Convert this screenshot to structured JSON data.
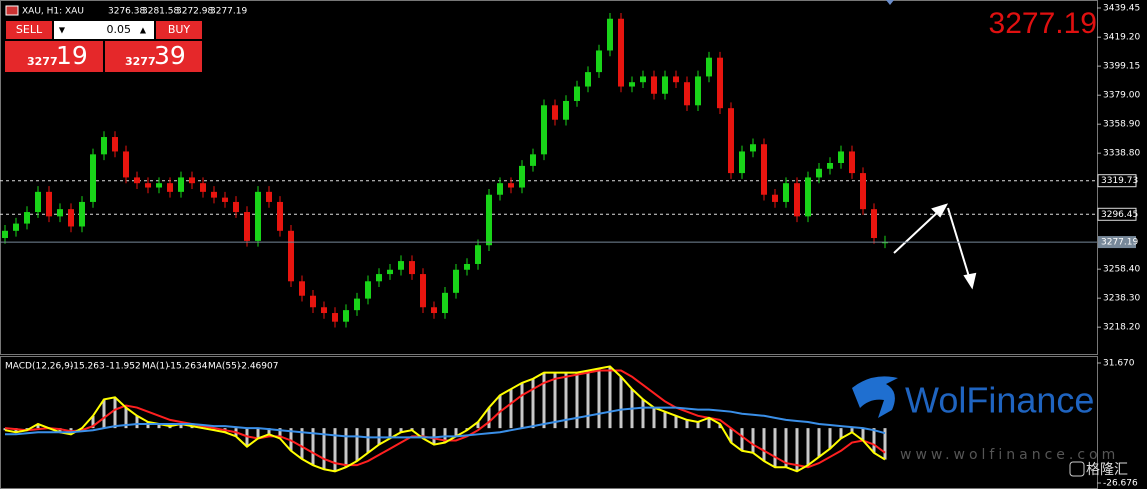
{
  "chart_data": [
    {
      "type": "candlestick",
      "symbol": "XAU, H1: XAU",
      "up_color": "#19d419",
      "down_color": "#e8150f",
      "bid_color": "#778899",
      "ylim": [
        3199.6,
        3443.6
      ],
      "yticks": [
        3439.45,
        {
          "value": 3419.2,
          "label": "3419.20"
        },
        3399.15,
        {
          "value": 3379,
          "label": "3379.00"
        },
        {
          "value": 3358.9,
          "label": "3358.90"
        },
        {
          "value": 3338.8,
          "label": "3338.80"
        },
        {
          "value": 3258.4,
          "label": "3258.40"
        },
        {
          "value": 3238.3,
          "label": "3238.30"
        },
        {
          "value": 3218.2,
          "label": "3218.20"
        }
      ],
      "levels": [
        3319.73,
        3296.45
      ],
      "open": [
        3280,
        3285,
        3290,
        3298,
        3312,
        3295,
        3300,
        3288,
        3305,
        3338,
        3350,
        3340,
        3322,
        3318,
        3315,
        3318,
        3312,
        3322,
        3318,
        3312,
        3308,
        3305,
        3298,
        3278,
        3312,
        3305,
        3285,
        3250,
        3240,
        3232,
        3228,
        3222,
        3230,
        3238,
        3250,
        3255,
        3258,
        3264,
        3255,
        3232,
        3228,
        3242,
        3258,
        3262,
        3275,
        3310,
        3318,
        3315,
        3330,
        3338,
        3372,
        3362,
        3375,
        3385,
        3395,
        3410,
        3432,
        3385,
        3388,
        3392,
        3380,
        3392,
        3388,
        3372,
        3392,
        3405,
        3370,
        3325,
        3340,
        3345,
        3310,
        3305,
        3318,
        3295,
        3322,
        3328,
        3332,
        3340,
        3325,
        3300,
        3276.38
      ],
      "high": [
        3289,
        3294,
        3302,
        3316,
        3316,
        3304,
        3304,
        3309,
        3342,
        3354,
        3354,
        3344,
        3326,
        3322,
        3322,
        3322,
        3326,
        3326,
        3322,
        3316,
        3312,
        3309,
        3302,
        3316,
        3316,
        3309,
        3289,
        3254,
        3244,
        3236,
        3232,
        3234,
        3242,
        3254,
        3259,
        3262,
        3268,
        3268,
        3259,
        3236,
        3246,
        3262,
        3266,
        3279,
        3314,
        3322,
        3322,
        3334,
        3342,
        3376,
        3376,
        3379,
        3389,
        3399,
        3414,
        3436,
        3436,
        3392,
        3396,
        3396,
        3396,
        3396,
        3392,
        3396,
        3409,
        3409,
        3374,
        3344,
        3349,
        3349,
        3314,
        3322,
        3322,
        3326,
        3332,
        3336,
        3344,
        3344,
        3329,
        3304,
        3281.58
      ],
      "low": [
        3276,
        3281,
        3286,
        3294,
        3291,
        3291,
        3284,
        3284,
        3301,
        3334,
        3336,
        3318,
        3314,
        3311,
        3311,
        3308,
        3308,
        3314,
        3308,
        3304,
        3301,
        3294,
        3274,
        3274,
        3301,
        3281,
        3246,
        3236,
        3228,
        3224,
        3218,
        3218,
        3226,
        3234,
        3246,
        3251,
        3254,
        3251,
        3228,
        3224,
        3224,
        3238,
        3254,
        3258,
        3271,
        3306,
        3311,
        3311,
        3326,
        3334,
        3358,
        3358,
        3371,
        3381,
        3391,
        3406,
        3381,
        3381,
        3384,
        3376,
        3376,
        3384,
        3368,
        3368,
        3388,
        3366,
        3321,
        3321,
        3336,
        3306,
        3301,
        3301,
        3291,
        3291,
        3318,
        3324,
        3328,
        3321,
        3296,
        3276,
        3272.98
      ],
      "close": [
        3285,
        3290,
        3298,
        3312,
        3295,
        3300,
        3288,
        3305,
        3338,
        3350,
        3340,
        3322,
        3318,
        3315,
        3318,
        3312,
        3322,
        3318,
        3312,
        3308,
        3305,
        3298,
        3278,
        3312,
        3305,
        3285,
        3250,
        3240,
        3232,
        3228,
        3222,
        3230,
        3238,
        3250,
        3255,
        3258,
        3264,
        3255,
        3232,
        3228,
        3242,
        3258,
        3262,
        3275,
        3310,
        3318,
        3315,
        3330,
        3338,
        3372,
        3362,
        3375,
        3385,
        3395,
        3410,
        3432,
        3385,
        3388,
        3392,
        3380,
        3392,
        3388,
        3372,
        3392,
        3405,
        3370,
        3325,
        3340,
        3345,
        3310,
        3305,
        3318,
        3295,
        3322,
        3328,
        3332,
        3340,
        3325,
        3300,
        3280,
        3277.19
      ]
    },
    {
      "type": "macd",
      "name": "MACD(12,26,9)",
      "ylim": [
        -29.59,
        34.59
      ],
      "yticks": [
        {
          "value": 31.67,
          "label": "31.670"
        },
        -26.676
      ],
      "histogram": {
        "color": "#c8c8c8",
        "values": [
          -1,
          -2,
          -1,
          2,
          0,
          -2,
          -3,
          0,
          6,
          14,
          15,
          10,
          6,
          3,
          2,
          1,
          2,
          1,
          0,
          -1,
          -2,
          -4,
          -9,
          -5,
          -3,
          -5,
          -11,
          -15,
          -18,
          -20,
          -21,
          -19,
          -16,
          -12,
          -8,
          -5,
          -2,
          -1,
          -5,
          -8,
          -7,
          -4,
          -1,
          3,
          10,
          16,
          19,
          22,
          24,
          27,
          27,
          27,
          27,
          28,
          29,
          30,
          25,
          19,
          14,
          10,
          8,
          6,
          4,
          3,
          5,
          2,
          -7,
          -11,
          -12,
          -16,
          -19,
          -19,
          -21,
          -18,
          -14,
          -10,
          -5,
          -2,
          -6,
          -12,
          -15.263
        ]
      },
      "series": [
        {
          "color": "#ff2020",
          "values": [
            0,
            -0.5,
            -1,
            -0.5,
            0,
            -0.5,
            -1.5,
            -1,
            1,
            5,
            9,
            11,
            10,
            8,
            6,
            4,
            3,
            2,
            1,
            0,
            -1,
            -2,
            -4,
            -5,
            -4,
            -4,
            -6,
            -9,
            -12,
            -15,
            -17,
            -18,
            -18,
            -16,
            -13,
            -10,
            -7,
            -4,
            -4,
            -5,
            -6,
            -6,
            -4,
            -1,
            3,
            8,
            12,
            16,
            19,
            22,
            24,
            25,
            26,
            27,
            28,
            28,
            28,
            25,
            21,
            17,
            13,
            10,
            8,
            6,
            5,
            4,
            0,
            -4,
            -8,
            -11,
            -14,
            -17,
            -18,
            -19,
            -17,
            -14,
            -11,
            -7,
            -6,
            -8,
            -11.952
          ]
        },
        {
          "name": "MA(1)",
          "color": "#ffff00",
          "values": [
            -1,
            -2,
            -1,
            2,
            0,
            -2,
            -3,
            0,
            6,
            14,
            15,
            10,
            6,
            3,
            2,
            1,
            2,
            1,
            0,
            -1,
            -2,
            -4,
            -9,
            -5,
            -3,
            -5,
            -11,
            -15,
            -18,
            -20,
            -21,
            -19,
            -16,
            -12,
            -8,
            -5,
            -2,
            -1,
            -5,
            -8,
            -7,
            -4,
            -1,
            3,
            10,
            16,
            19,
            22,
            24,
            27,
            27,
            27,
            27,
            28,
            29,
            30,
            25,
            19,
            14,
            10,
            8,
            6,
            4,
            3,
            5,
            2,
            -7,
            -11,
            -12,
            -16,
            -19,
            -19,
            -21,
            -18,
            -14,
            -10,
            -5,
            -2,
            -6,
            -12,
            -15.2634
          ]
        },
        {
          "name": "MA(55)",
          "color": "#3a8fe8",
          "values": [
            -3,
            -3,
            -2.5,
            -2,
            -2,
            -2,
            -2,
            -1.5,
            -1,
            0,
            1,
            1.5,
            2,
            2,
            2,
            2,
            2,
            2,
            1.5,
            1,
            1,
            0.5,
            0,
            0,
            -0.5,
            -1,
            -1.5,
            -2,
            -2.5,
            -3,
            -3.5,
            -4,
            -4,
            -4.5,
            -4.5,
            -4.5,
            -4.5,
            -4.5,
            -4.5,
            -4.5,
            -4,
            -4,
            -3.5,
            -3,
            -2.5,
            -2,
            -1,
            0,
            1,
            2,
            3,
            4,
            5,
            6,
            7,
            8,
            9,
            9.5,
            10,
            10,
            10,
            10,
            9.5,
            9,
            9,
            8.5,
            8,
            7,
            6.5,
            6,
            5,
            4,
            3.5,
            3,
            2,
            1.5,
            1,
            0.5,
            0,
            -1,
            -2.46907
          ]
        }
      ]
    }
  ],
  "trade_panel": {
    "sell": "SELL",
    "buy": "BUY",
    "volume": 0.05,
    "sell_big": 3277,
    "sell_small": 19,
    "buy_big": 3277,
    "buy_small": 39
  },
  "watermark": {
    "brand": "WolFinance",
    "url": "www.wolfinance.com",
    "source": "格隆汇"
  }
}
